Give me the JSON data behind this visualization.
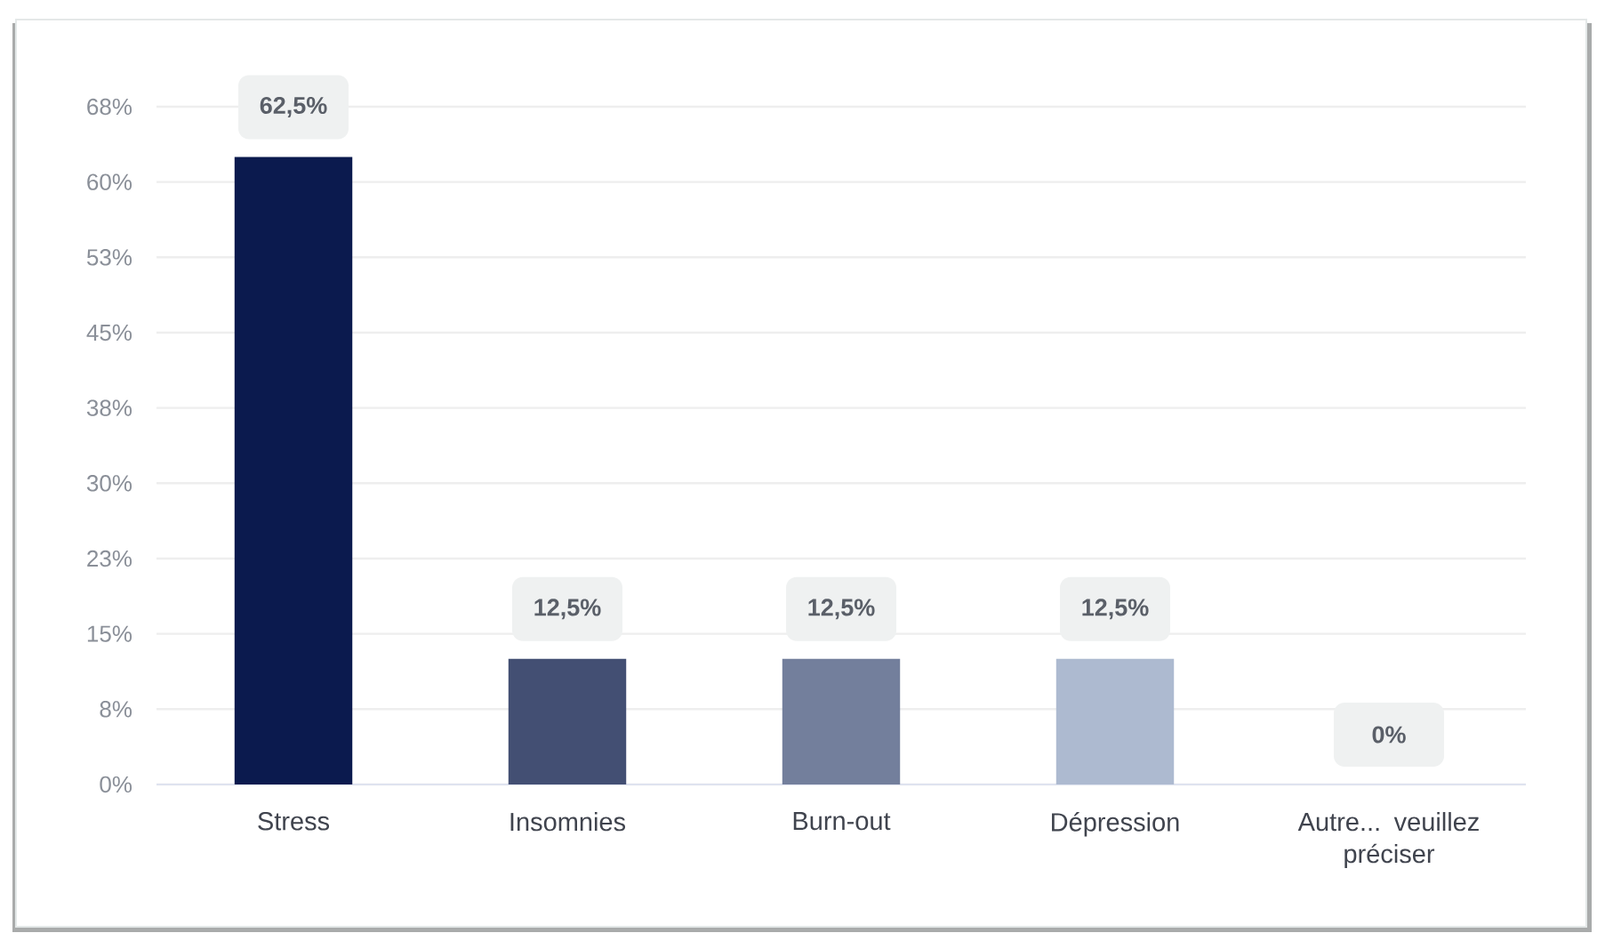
{
  "chart_data": {
    "type": "bar",
    "categories": [
      "Stress",
      "Insomnies",
      "Burn-out",
      "Dépression",
      "Autre... veuillez préciser"
    ],
    "values": [
      62.5,
      12.5,
      12.5,
      12.5,
      0
    ],
    "colors": [
      "#0b1a4e",
      "#434f73",
      "#737f9c",
      "#adbad0",
      "#adbad0"
    ],
    "value_labels": [
      "62,5%",
      "12,5%",
      "12,5%",
      "12,5%",
      "0%"
    ],
    "ylim": [
      0,
      67.5
    ],
    "yticks": [
      {
        "value": 0,
        "label": "0%"
      },
      {
        "value": 7.5,
        "label": "8%"
      },
      {
        "value": 15,
        "label": "15%"
      },
      {
        "value": 22.5,
        "label": "23%"
      },
      {
        "value": 30,
        "label": "30%"
      },
      {
        "value": 37.5,
        "label": "38%"
      },
      {
        "value": 45,
        "label": "45%"
      },
      {
        "value": 52.5,
        "label": "53%"
      },
      {
        "value": 60,
        "label": "60%"
      },
      {
        "value": 67.5,
        "label": "68%"
      }
    ],
    "grid": "y"
  }
}
